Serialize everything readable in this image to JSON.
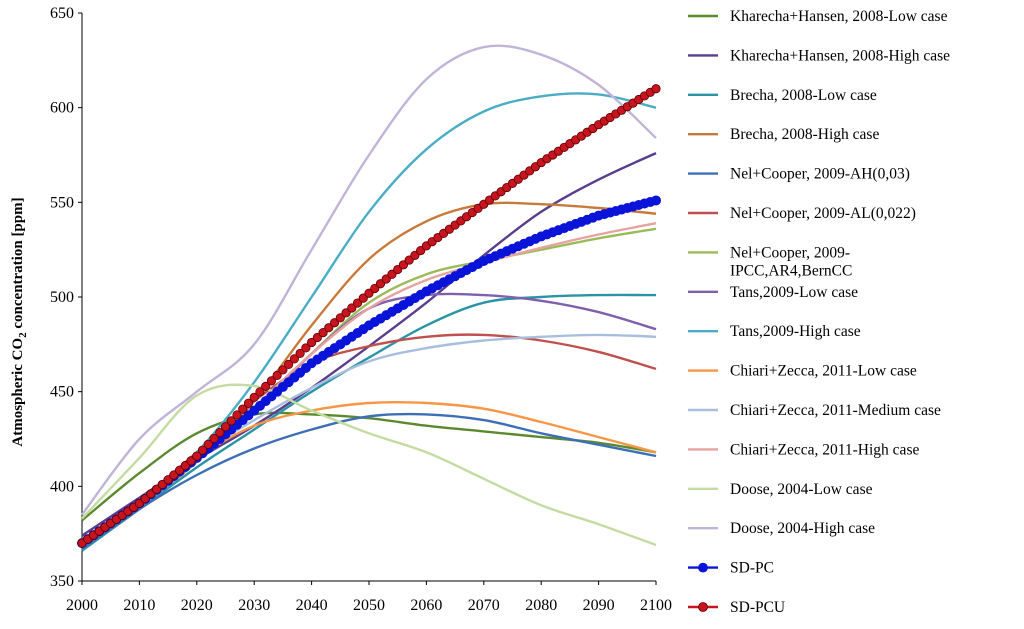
{
  "chart_data": {
    "type": "line",
    "ylabel_main": "Atmospheric CO",
    "ylabel_sub": "2",
    "ylabel_rest": " concentration [ppm]",
    "xlim": [
      2000,
      2100
    ],
    "ylim": [
      350,
      650
    ],
    "xticks": [
      "2000",
      "2010",
      "2020",
      "2030",
      "2040",
      "2050",
      "2060",
      "2070",
      "2080",
      "2090",
      "2100"
    ],
    "yticks": [
      "350",
      "400",
      "450",
      "500",
      "550",
      "600",
      "650"
    ],
    "grid": false,
    "legend_position": "right",
    "series": [
      {
        "name": "Kharecha+Hansen, 2008-Low case",
        "name_lines": [
          "Kharecha+Hansen, 2008-Low case"
        ],
        "color": "#5b8a2e",
        "marker": "none",
        "x": [
          2000,
          2010,
          2020,
          2030,
          2040,
          2050,
          2060,
          2070,
          2080,
          2090,
          2100
        ],
        "y": [
          382,
          407,
          428,
          438,
          438,
          436,
          432,
          429,
          426,
          423,
          418
        ]
      },
      {
        "name": "Kharecha+Hansen, 2008-High case",
        "name_lines": [
          "Kharecha+Hansen, 2008-High case"
        ],
        "color": "#5a3d8c",
        "marker": "none",
        "x": [
          2000,
          2010,
          2020,
          2030,
          2040,
          2050,
          2060,
          2070,
          2080,
          2090,
          2100
        ],
        "y": [
          374,
          394,
          414,
          432,
          452,
          474,
          497,
          522,
          545,
          562,
          576
        ]
      },
      {
        "name": "Brecha, 2008-Low case",
        "name_lines": [
          "Brecha, 2008-Low case"
        ],
        "color": "#2a94a6",
        "marker": "none",
        "x": [
          2000,
          2010,
          2020,
          2030,
          2040,
          2050,
          2060,
          2070,
          2080,
          2090,
          2100
        ],
        "y": [
          366,
          388,
          410,
          430,
          450,
          468,
          485,
          497,
          500,
          501,
          501
        ]
      },
      {
        "name": "Brecha, 2008-High case",
        "name_lines": [
          "Brecha, 2008-High case"
        ],
        "color": "#c87a3a",
        "marker": "none",
        "x": [
          2000,
          2010,
          2020,
          2030,
          2040,
          2050,
          2060,
          2070,
          2080,
          2090,
          2100
        ],
        "y": [
          370,
          390,
          413,
          445,
          485,
          520,
          540,
          549,
          549,
          547,
          544
        ]
      },
      {
        "name": "Nel+Cooper, 2009-AH(0,03)",
        "name_lines": [
          "Nel+Cooper, 2009-AH(0,03)"
        ],
        "color": "#3d6fb6",
        "marker": "none",
        "x": [
          2000,
          2010,
          2020,
          2030,
          2040,
          2050,
          2060,
          2070,
          2080,
          2090,
          2100
        ],
        "y": [
          367,
          388,
          406,
          420,
          430,
          437,
          438,
          435,
          428,
          422,
          416
        ]
      },
      {
        "name": "Nel+Cooper, 2009-AL(0,022)",
        "name_lines": [
          "Nel+Cooper, 2009-AL(0,022)"
        ],
        "color": "#c0504d",
        "marker": "none",
        "x": [
          2000,
          2010,
          2020,
          2030,
          2040,
          2050,
          2060,
          2070,
          2080,
          2090,
          2100
        ],
        "y": [
          370,
          392,
          418,
          445,
          465,
          474,
          479,
          480,
          477,
          471,
          462
        ]
      },
      {
        "name": "Nel+Cooper, 2009-IPCC,AR4,BernCC",
        "name_lines": [
          "Nel+Cooper, 2009-",
          "IPCC,AR4,BernCC"
        ],
        "color": "#9bbb59",
        "marker": "none",
        "x": [
          2000,
          2010,
          2020,
          2030,
          2040,
          2050,
          2060,
          2070,
          2080,
          2090,
          2100
        ],
        "y": [
          370,
          393,
          415,
          440,
          470,
          497,
          512,
          519,
          525,
          531,
          536
        ]
      },
      {
        "name": "Tans,2009-Low case",
        "name_lines": [
          "Tans,2009-Low case"
        ],
        "color": "#7f5fae",
        "marker": "none",
        "x": [
          2000,
          2010,
          2020,
          2030,
          2040,
          2050,
          2060,
          2070,
          2080,
          2090,
          2100
        ],
        "y": [
          370,
          392,
          416,
          440,
          470,
          494,
          501,
          501,
          498,
          492,
          483
        ]
      },
      {
        "name": "Tans,2009-High case",
        "name_lines": [
          "Tans,2009-High case"
        ],
        "color": "#4bacc6",
        "marker": "none",
        "x": [
          2000,
          2010,
          2020,
          2030,
          2040,
          2050,
          2060,
          2070,
          2080,
          2090,
          2100
        ],
        "y": [
          370,
          392,
          418,
          455,
          500,
          545,
          578,
          598,
          606,
          607,
          600
        ]
      },
      {
        "name": "Chiari+Zecca, 2011-Low case",
        "name_lines": [
          "Chiari+Zecca, 2011-Low case"
        ],
        "color": "#f79646",
        "marker": "none",
        "x": [
          2000,
          2010,
          2020,
          2030,
          2040,
          2050,
          2060,
          2070,
          2080,
          2090,
          2100
        ],
        "y": [
          370,
          392,
          415,
          432,
          440,
          444,
          444,
          441,
          434,
          426,
          418
        ]
      },
      {
        "name": "Chiari+Zecca, 2011-Medium case",
        "name_lines": [
          "Chiari+Zecca, 2011-Medium case"
        ],
        "color": "#a9bedf",
        "marker": "none",
        "x": [
          2000,
          2010,
          2020,
          2030,
          2040,
          2050,
          2060,
          2070,
          2080,
          2090,
          2100
        ],
        "y": [
          370,
          392,
          416,
          435,
          452,
          466,
          473,
          477,
          479,
          480,
          479
        ]
      },
      {
        "name": "Chiari+Zecca, 2011-High case",
        "name_lines": [
          "Chiari+Zecca, 2011-High case"
        ],
        "color": "#e6a3a0",
        "marker": "none",
        "x": [
          2000,
          2010,
          2020,
          2030,
          2040,
          2050,
          2060,
          2070,
          2080,
          2090,
          2100
        ],
        "y": [
          370,
          392,
          417,
          442,
          470,
          494,
          509,
          518,
          526,
          533,
          539
        ]
      },
      {
        "name": "Doose, 2004-Low case",
        "name_lines": [
          "Doose, 2004-Low case"
        ],
        "color": "#c3dca2",
        "marker": "none",
        "x": [
          2000,
          2010,
          2020,
          2030,
          2040,
          2050,
          2060,
          2070,
          2080,
          2090,
          2100
        ],
        "y": [
          383,
          415,
          448,
          453,
          440,
          428,
          418,
          404,
          390,
          380,
          369
        ]
      },
      {
        "name": "Doose, 2004-High case",
        "name_lines": [
          "Doose, 2004-High case"
        ],
        "color": "#c2b4d9",
        "marker": "none",
        "x": [
          2000,
          2010,
          2020,
          2030,
          2040,
          2050,
          2060,
          2070,
          2080,
          2090,
          2100
        ],
        "y": [
          385,
          425,
          450,
          475,
          525,
          575,
          615,
          632,
          628,
          612,
          584
        ]
      },
      {
        "name": "SD-PC",
        "name_lines": [
          "SD-PC"
        ],
        "color": "#0a14d8",
        "marker": "circle",
        "x": [
          2000,
          2010,
          2020,
          2030,
          2040,
          2050,
          2060,
          2070,
          2080,
          2090,
          2100
        ],
        "y": [
          370,
          391,
          415,
          440,
          465,
          485,
          503,
          519,
          532,
          543,
          551
        ]
      },
      {
        "name": "SD-PCU",
        "name_lines": [
          "SD-PCU"
        ],
        "color": "#c8141e",
        "marker": "circle",
        "x": [
          2000,
          2010,
          2020,
          2030,
          2040,
          2050,
          2060,
          2070,
          2080,
          2090,
          2100
        ],
        "y": [
          370,
          391,
          416,
          447,
          476,
          502,
          527,
          549,
          571,
          591,
          610
        ]
      }
    ]
  }
}
